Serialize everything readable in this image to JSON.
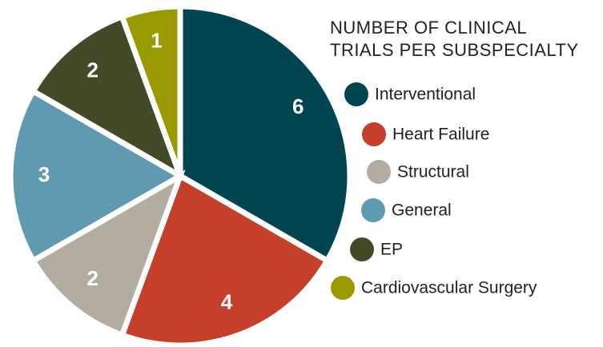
{
  "chart_data": {
    "type": "pie",
    "title": [
      "NUMBER OF CLINICAL",
      "TRIALS PER SUBSPECIALTY"
    ],
    "categories": [
      "Interventional",
      "Heart Failure",
      "Structural",
      "General",
      "EP",
      "Cardiovascular Surgery"
    ],
    "values": [
      6,
      4,
      2,
      3,
      2,
      1
    ],
    "colors": [
      "#00454f",
      "#c4402b",
      "#b3aca0",
      "#5f9ab0",
      "#424a28",
      "#9a9a00"
    ]
  }
}
